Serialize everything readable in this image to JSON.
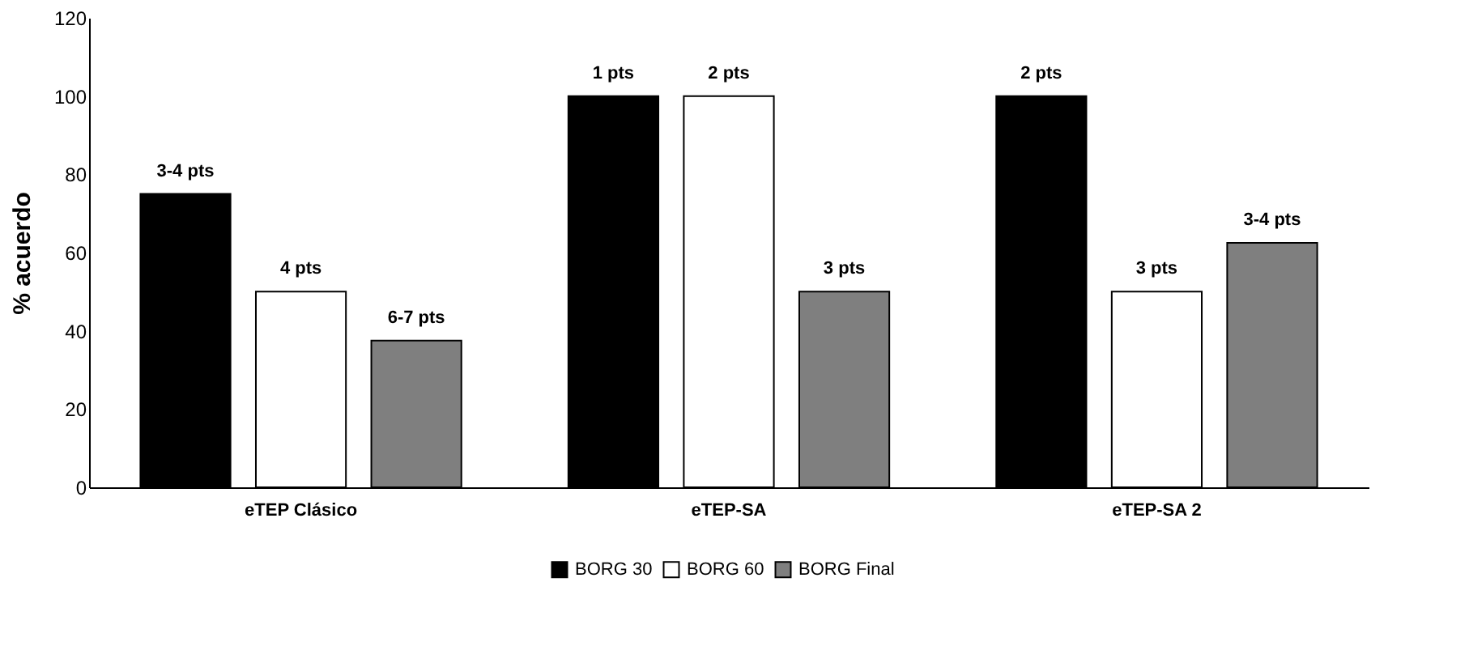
{
  "chart_data": {
    "type": "bar",
    "ylabel": "% acuerdo",
    "categories": [
      "eTEP Clásico",
      "eTEP-SA",
      "eTEP-SA 2"
    ],
    "series": [
      {
        "name": "BORG 30",
        "color": "#000000",
        "values": [
          75,
          100,
          100
        ]
      },
      {
        "name": "BORG 60",
        "color": "#ffffff",
        "values": [
          50,
          100,
          50
        ]
      },
      {
        "name": "BORG Final",
        "color": "#7f7f7f",
        "values": [
          37.5,
          50,
          62.5
        ]
      }
    ],
    "annotations": [
      "3-4 pts",
      "4 pts",
      "6-7 pts",
      "1 pts",
      "2 pts",
      "3 pts",
      "2 pts",
      "3 pts",
      "3-4 pts"
    ],
    "ylim": [
      0,
      120
    ],
    "yticks": [
      0,
      20,
      40,
      60,
      80,
      100,
      120
    ],
    "grid": false,
    "legend": "bottom"
  }
}
